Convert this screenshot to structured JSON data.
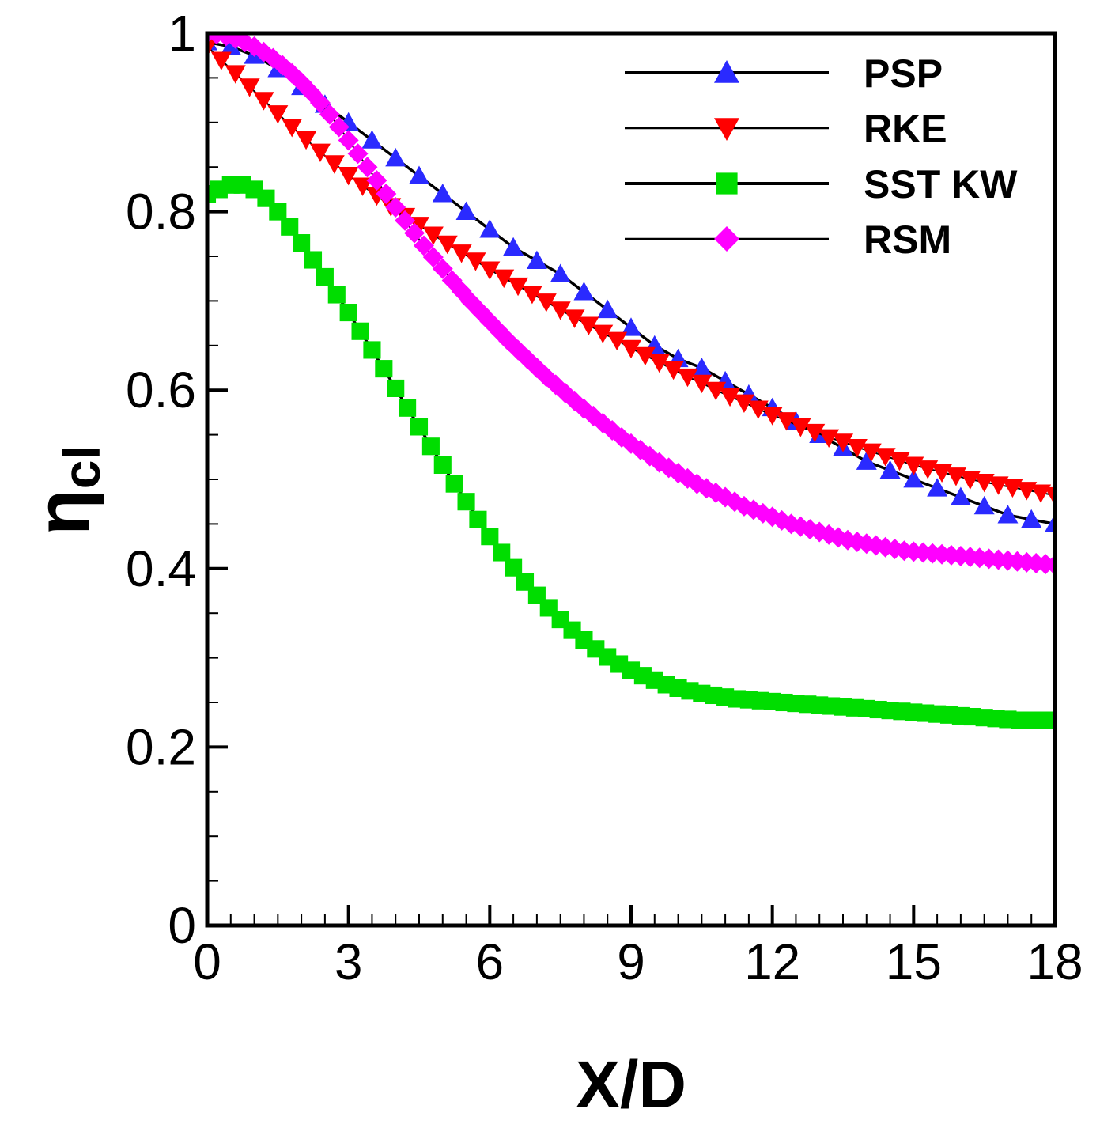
{
  "chart_data": {
    "type": "line",
    "title": "",
    "xlabel": "X/D",
    "ylabel_main": "η",
    "ylabel_sub": "cl",
    "xlim": [
      0,
      18
    ],
    "ylim": [
      0,
      1
    ],
    "xticks": [
      0,
      3,
      6,
      9,
      12,
      15,
      18
    ],
    "xtick_labels": [
      "0",
      "3",
      "6",
      "9",
      "12",
      "15",
      "18"
    ],
    "yticks": [
      0,
      0.2,
      0.4,
      0.6,
      0.8,
      1
    ],
    "ytick_labels": [
      "0",
      "0.2",
      "0.4",
      "0.6",
      "0.8",
      "1"
    ],
    "legend_position": "top-right",
    "grid": false,
    "series": [
      {
        "name": "PSP",
        "color": "#2a2aff",
        "marker": "triangle-up",
        "line_width": 3.5,
        "x": [
          0,
          0.5,
          1,
          1.5,
          2,
          2.5,
          3,
          3.5,
          4,
          4.5,
          5,
          5.5,
          6,
          6.5,
          7,
          7.5,
          8,
          8.5,
          9,
          9.5,
          10,
          10.5,
          11,
          11.5,
          12,
          12.5,
          13,
          13.5,
          14,
          14.5,
          15,
          15.5,
          16,
          16.5,
          17,
          17.5,
          18
        ],
        "y": [
          0.99,
          0.985,
          0.975,
          0.96,
          0.94,
          0.92,
          0.9,
          0.88,
          0.86,
          0.84,
          0.82,
          0.8,
          0.78,
          0.76,
          0.745,
          0.73,
          0.71,
          0.69,
          0.67,
          0.65,
          0.635,
          0.625,
          0.61,
          0.595,
          0.58,
          0.565,
          0.55,
          0.535,
          0.52,
          0.51,
          0.5,
          0.49,
          0.48,
          0.47,
          0.46,
          0.455,
          0.45
        ]
      },
      {
        "name": "RKE",
        "color": "#ff0000",
        "marker": "triangle-down",
        "line_width": 2,
        "x": [
          0,
          0.3,
          0.6,
          0.9,
          1.2,
          1.5,
          1.8,
          2.1,
          2.4,
          2.7,
          3,
          3.3,
          3.6,
          3.9,
          4.2,
          4.5,
          4.8,
          5.1,
          5.4,
          5.7,
          6,
          6.3,
          6.6,
          6.9,
          7.2,
          7.5,
          7.8,
          8.1,
          8.4,
          8.7,
          9,
          9.3,
          9.6,
          9.9,
          10.2,
          10.5,
          10.8,
          11.1,
          11.4,
          11.7,
          12,
          12.3,
          12.6,
          12.9,
          13.2,
          13.5,
          13.8,
          14.1,
          14.4,
          14.7,
          15,
          15.3,
          15.6,
          15.9,
          16.2,
          16.5,
          16.8,
          17.1,
          17.4,
          17.7,
          18
        ],
        "y": [
          0.985,
          0.97,
          0.955,
          0.94,
          0.925,
          0.91,
          0.895,
          0.881,
          0.867,
          0.854,
          0.841,
          0.829,
          0.818,
          0.806,
          0.795,
          0.785,
          0.774,
          0.764,
          0.754,
          0.745,
          0.735,
          0.726,
          0.717,
          0.708,
          0.699,
          0.69,
          0.681,
          0.673,
          0.664,
          0.656,
          0.647,
          0.639,
          0.631,
          0.623,
          0.615,
          0.608,
          0.6,
          0.593,
          0.586,
          0.579,
          0.572,
          0.566,
          0.559,
          0.553,
          0.547,
          0.542,
          0.536,
          0.531,
          0.526,
          0.521,
          0.516,
          0.512,
          0.508,
          0.504,
          0.5,
          0.497,
          0.494,
          0.491,
          0.488,
          0.485,
          0.482
        ]
      },
      {
        "name": "SST KW",
        "color": "#00dd00",
        "marker": "square",
        "line_width": 3.5,
        "x": [
          0,
          0.25,
          0.5,
          0.75,
          1,
          1.25,
          1.5,
          1.75,
          2,
          2.25,
          2.5,
          2.75,
          3,
          3.25,
          3.5,
          3.75,
          4,
          4.25,
          4.5,
          4.75,
          5,
          5.25,
          5.5,
          5.75,
          6,
          6.25,
          6.5,
          6.75,
          7,
          7.25,
          7.5,
          7.75,
          8,
          8.25,
          8.5,
          8.75,
          9,
          9.25,
          9.5,
          9.75,
          10,
          10.25,
          10.5,
          10.75,
          11,
          11.25,
          11.5,
          11.75,
          12,
          12.25,
          12.5,
          12.75,
          13,
          13.25,
          13.5,
          13.75,
          14,
          14.25,
          14.5,
          14.75,
          15,
          15.25,
          15.5,
          15.75,
          16,
          16.25,
          16.5,
          16.75,
          17,
          17.25,
          17.5,
          17.75,
          18
        ],
        "y": [
          0.82,
          0.825,
          0.83,
          0.83,
          0.825,
          0.815,
          0.8,
          0.783,
          0.765,
          0.746,
          0.727,
          0.707,
          0.687,
          0.666,
          0.645,
          0.624,
          0.602,
          0.58,
          0.559,
          0.537,
          0.516,
          0.495,
          0.475,
          0.455,
          0.436,
          0.418,
          0.401,
          0.385,
          0.37,
          0.356,
          0.343,
          0.331,
          0.32,
          0.31,
          0.301,
          0.293,
          0.286,
          0.28,
          0.275,
          0.27,
          0.266,
          0.263,
          0.26,
          0.258,
          0.256,
          0.254,
          0.253,
          0.252,
          0.251,
          0.25,
          0.249,
          0.248,
          0.247,
          0.246,
          0.245,
          0.244,
          0.243,
          0.242,
          0.241,
          0.24,
          0.239,
          0.238,
          0.237,
          0.236,
          0.235,
          0.234,
          0.233,
          0.232,
          0.231,
          0.23,
          0.23,
          0.23,
          0.23
        ]
      },
      {
        "name": "RSM",
        "color": "#ff00ff",
        "marker": "diamond",
        "line_width": 2,
        "x": [
          0,
          0.2,
          0.4,
          0.6,
          0.8,
          1,
          1.2,
          1.4,
          1.6,
          1.8,
          2,
          2.2,
          2.4,
          2.6,
          2.8,
          3,
          3.2,
          3.4,
          3.6,
          3.8,
          4,
          4.2,
          4.4,
          4.6,
          4.8,
          5,
          5.2,
          5.4,
          5.6,
          5.8,
          6,
          6.2,
          6.4,
          6.6,
          6.8,
          7,
          7.2,
          7.4,
          7.6,
          7.8,
          8,
          8.2,
          8.4,
          8.6,
          8.8,
          9,
          9.2,
          9.4,
          9.6,
          9.8,
          10,
          10.2,
          10.4,
          10.6,
          10.8,
          11,
          11.2,
          11.4,
          11.6,
          11.8,
          12,
          12.2,
          12.4,
          12.6,
          12.8,
          13,
          13.2,
          13.4,
          13.6,
          13.8,
          14,
          14.2,
          14.4,
          14.6,
          14.8,
          15,
          15.2,
          15.4,
          15.6,
          15.8,
          16,
          16.2,
          16.4,
          16.6,
          16.8,
          17,
          17.2,
          17.4,
          17.6,
          17.8,
          18
        ],
        "y": [
          1,
          0.999,
          0.997,
          0.994,
          0.99,
          0.985,
          0.979,
          0.972,
          0.964,
          0.955,
          0.945,
          0.934,
          0.922,
          0.909,
          0.895,
          0.88,
          0.865,
          0.85,
          0.835,
          0.82,
          0.805,
          0.79,
          0.776,
          0.762,
          0.749,
          0.736,
          0.723,
          0.711,
          0.699,
          0.688,
          0.677,
          0.666,
          0.655,
          0.645,
          0.635,
          0.625,
          0.615,
          0.606,
          0.597,
          0.588,
          0.579,
          0.571,
          0.563,
          0.555,
          0.547,
          0.54,
          0.533,
          0.526,
          0.519,
          0.513,
          0.507,
          0.501,
          0.495,
          0.49,
          0.485,
          0.48,
          0.475,
          0.47,
          0.466,
          0.462,
          0.458,
          0.454,
          0.45,
          0.447,
          0.444,
          0.441,
          0.438,
          0.435,
          0.432,
          0.43,
          0.428,
          0.426,
          0.424,
          0.422,
          0.42,
          0.419,
          0.418,
          0.417,
          0.416,
          0.415,
          0.414,
          0.413,
          0.412,
          0.411,
          0.41,
          0.409,
          0.408,
          0.407,
          0.406,
          0.405,
          0.404
        ]
      }
    ]
  }
}
